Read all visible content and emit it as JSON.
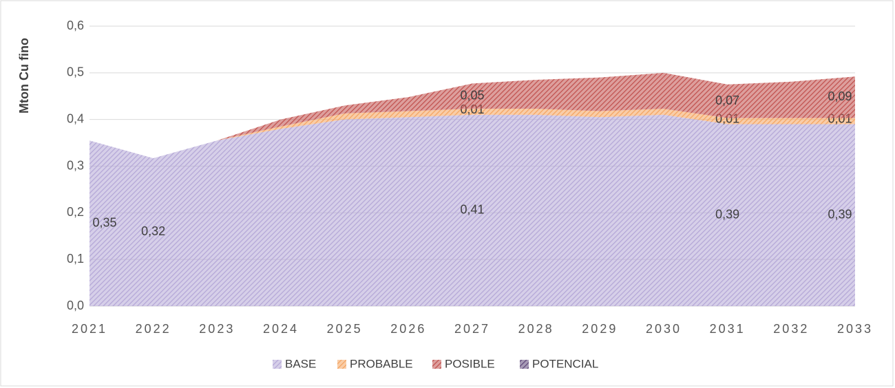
{
  "chart_data": {
    "type": "stacked_area",
    "y_label": "Mton Cu fino",
    "categories": [
      "2021",
      "2022",
      "2023",
      "2024",
      "2025",
      "2026",
      "2027",
      "2028",
      "2029",
      "2030",
      "2031",
      "2032",
      "2033"
    ],
    "series": [
      {
        "name": "BASE",
        "color": "#b4a7d6",
        "values": [
          0.355,
          0.317,
          0.355,
          0.38,
          0.4,
          0.405,
          0.41,
          0.41,
          0.405,
          0.41,
          0.39,
          0.39,
          0.39
        ],
        "value_labels": [
          "0,35",
          "0,32",
          null,
          null,
          null,
          null,
          "0,41",
          null,
          null,
          null,
          "0,39",
          null,
          "0,39"
        ]
      },
      {
        "name": "PROBABLE",
        "color": "#f4a460",
        "values": [
          0,
          0,
          0,
          0.005,
          0.013,
          0.013,
          0.013,
          0.013,
          0.013,
          0.013,
          0.013,
          0.013,
          0.013
        ],
        "value_labels": [
          null,
          null,
          null,
          null,
          null,
          null,
          "0,01",
          null,
          null,
          null,
          "0,01",
          null,
          "0,01"
        ]
      },
      {
        "name": "POSIBLE",
        "color": "#c0504d",
        "values": [
          0,
          0,
          0,
          0.015,
          0.017,
          0.03,
          0.054,
          0.062,
          0.072,
          0.077,
          0.072,
          0.078,
          0.089
        ],
        "value_labels": [
          null,
          null,
          null,
          null,
          null,
          null,
          "0,05",
          null,
          null,
          null,
          "0,07",
          null,
          "0,09"
        ]
      },
      {
        "name": "POTENCIAL",
        "color": "#5f497a",
        "values": [
          0,
          0,
          0,
          0,
          0,
          0,
          0,
          0,
          0,
          0,
          0,
          0,
          0
        ]
      }
    ],
    "ylim": [
      0,
      0.6
    ],
    "yticks": [
      {
        "value": 0,
        "label": "0,0"
      },
      {
        "value": 0.1,
        "label": "0,1"
      },
      {
        "value": 0.2,
        "label": "0,2"
      },
      {
        "value": 0.3,
        "label": "0,3"
      },
      {
        "value": 0.4,
        "label": "0,4"
      },
      {
        "value": 0.5,
        "label": "0,5"
      },
      {
        "value": 0.6,
        "label": "0,6"
      }
    ],
    "grid": true,
    "legend": "bottom"
  }
}
